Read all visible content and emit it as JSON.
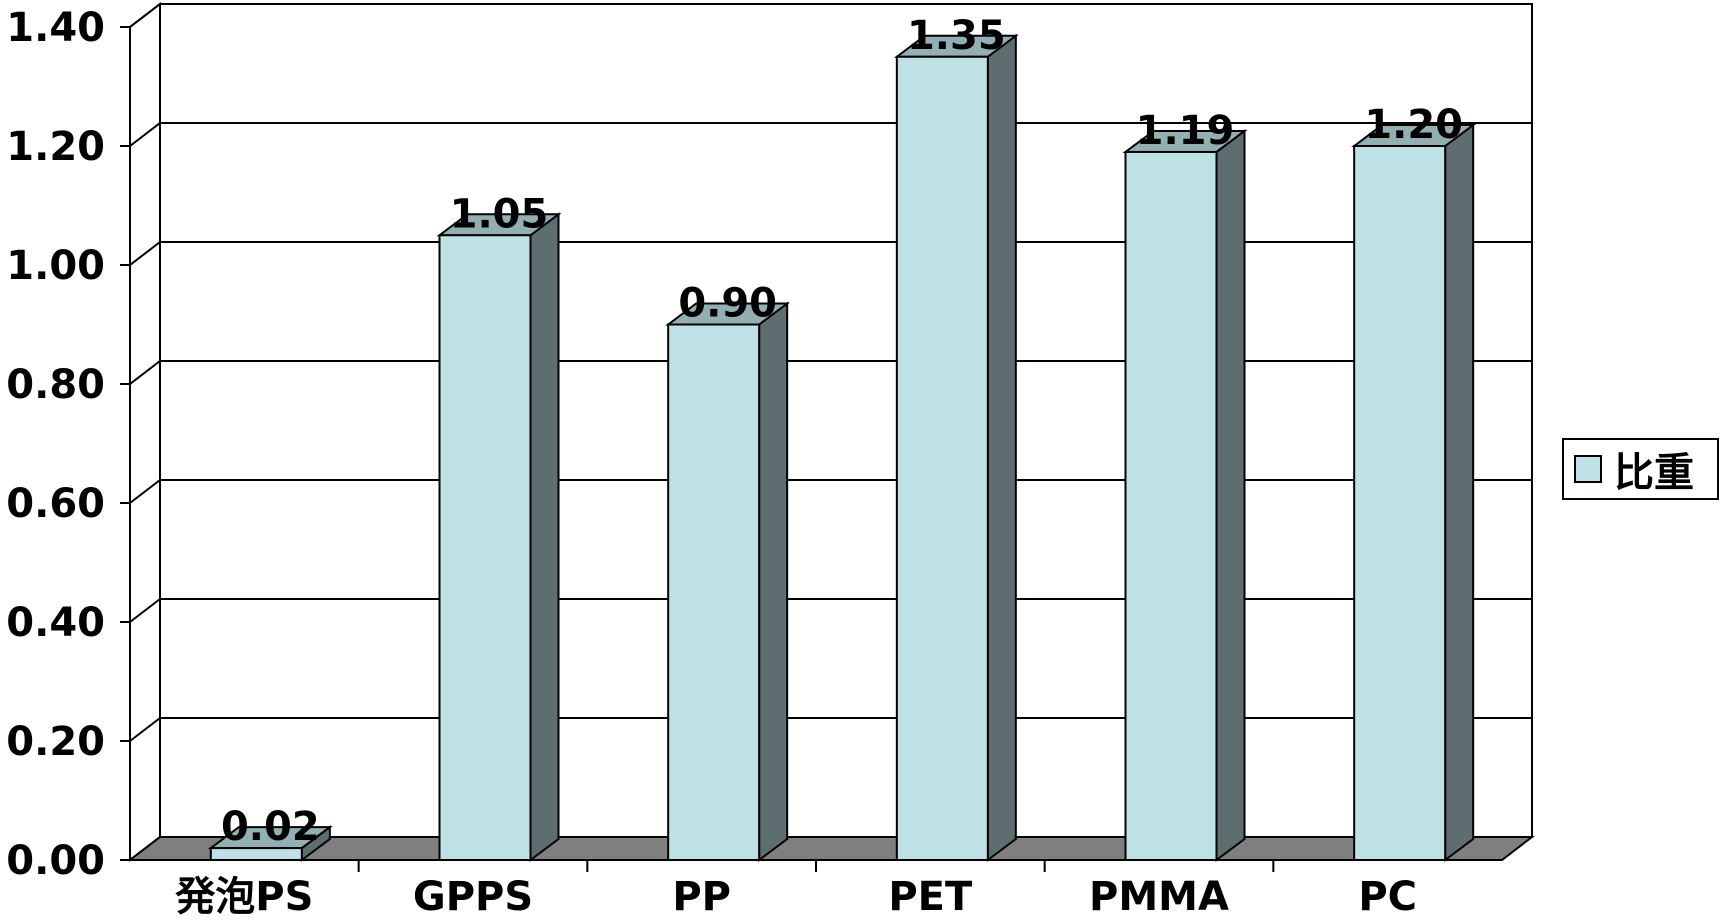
{
  "chart_data": {
    "type": "bar",
    "categories": [
      "発泡PS",
      "GPPS",
      "PP",
      "PET",
      "PMMA",
      "PC"
    ],
    "series": [
      {
        "name": "比重",
        "values": [
          0.02,
          1.05,
          0.9,
          1.35,
          1.19,
          1.2
        ],
        "labels": [
          "0.02",
          "1.05",
          "0.90",
          "1.35",
          "1.19",
          "1.20"
        ]
      }
    ],
    "yticks": [
      "0.00",
      "0.20",
      "0.40",
      "0.60",
      "0.80",
      "1.00",
      "1.20",
      "1.40"
    ],
    "ylim": [
      0,
      1.4
    ],
    "grid": true,
    "three_d": true,
    "legend_position": "right",
    "colors": {
      "bar_front": "#BDE1E4",
      "bar_side": "#5E6E70",
      "bar_top": "#92AFB2",
      "floor": "#7F7F7F",
      "grid": "#000000"
    }
  }
}
